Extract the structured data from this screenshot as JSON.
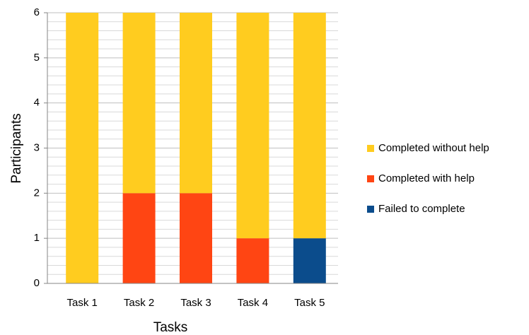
{
  "chart_data": {
    "type": "stacked_bar",
    "x_label": "Tasks",
    "y_label": "Participants",
    "categories": [
      "Task 1",
      "Task 2",
      "Task 3",
      "Task 4",
      "Task 5"
    ],
    "series": [
      {
        "name": "Completed without help",
        "color": "#ffcc1f",
        "values": [
          6,
          4,
          4,
          5,
          5
        ]
      },
      {
        "name": "Completed with help",
        "color": "#ff4513",
        "values": [
          0,
          2,
          2,
          1,
          0
        ]
      },
      {
        "name": "Failed to complete",
        "color": "#0b4c8c",
        "values": [
          0,
          0,
          0,
          0,
          1
        ]
      }
    ],
    "stack_order": "bottom_up_reversed",
    "ylim": [
      0,
      6
    ],
    "yticks": [
      0,
      1,
      2,
      3,
      4,
      5,
      6
    ],
    "grid": true,
    "minor_ticks_per_major": 5,
    "legend": "right"
  }
}
